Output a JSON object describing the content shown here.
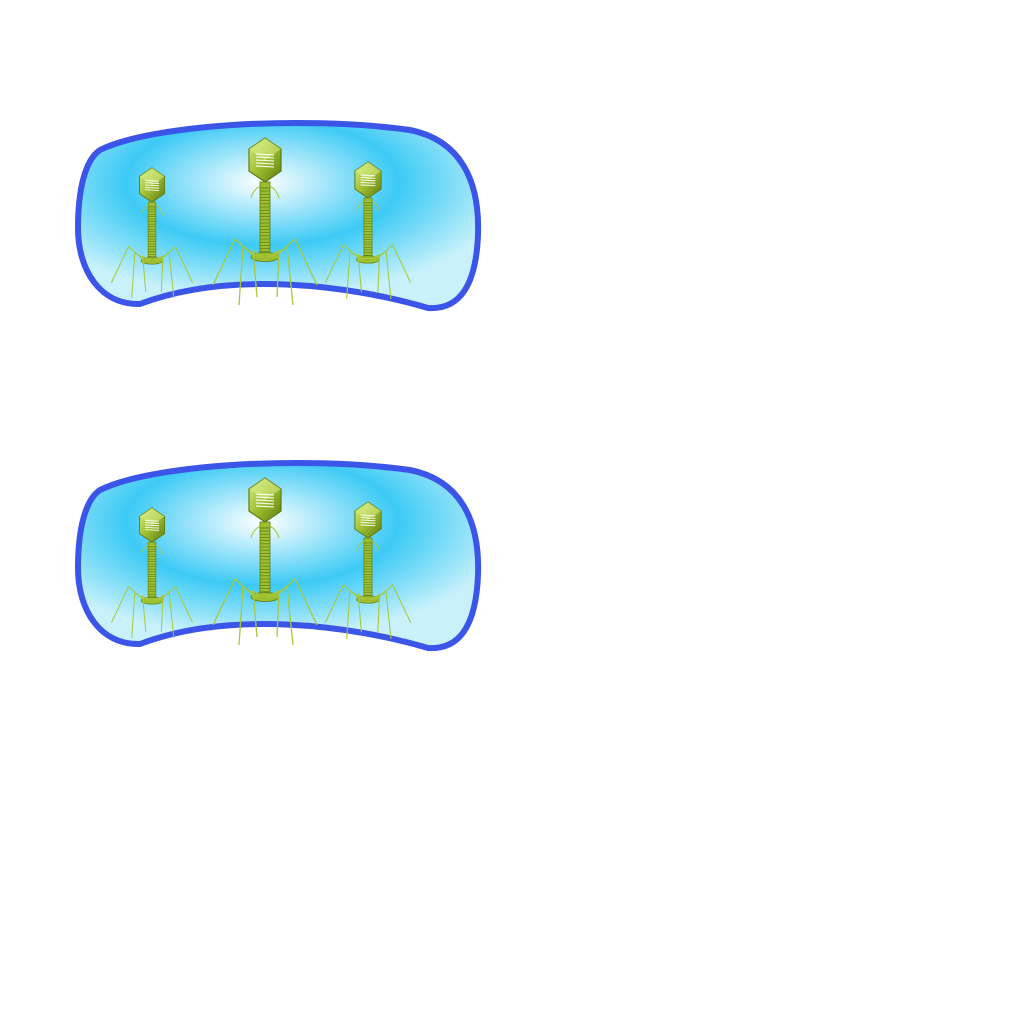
{
  "colors": {
    "cell_outline": "#3b55e8",
    "cytoplasm_center": "#ffffff",
    "cytoplasm_mid": "#3ccaf5",
    "cytoplasm_edge": "#c8f1fb",
    "phage_light": "#d9ee8a",
    "phage_main": "#9dbf2f",
    "phage_dark": "#5f7c12",
    "phage_leg": "#a8c83c"
  },
  "diagram": {
    "cells": [
      {
        "name": "bacterium-cell-top",
        "phages": [
          "phage-left",
          "phage-center",
          "phage-right"
        ]
      },
      {
        "name": "bacterium-cell-bottom",
        "phages": [
          "phage-left",
          "phage-center",
          "phage-right"
        ]
      }
    ]
  }
}
